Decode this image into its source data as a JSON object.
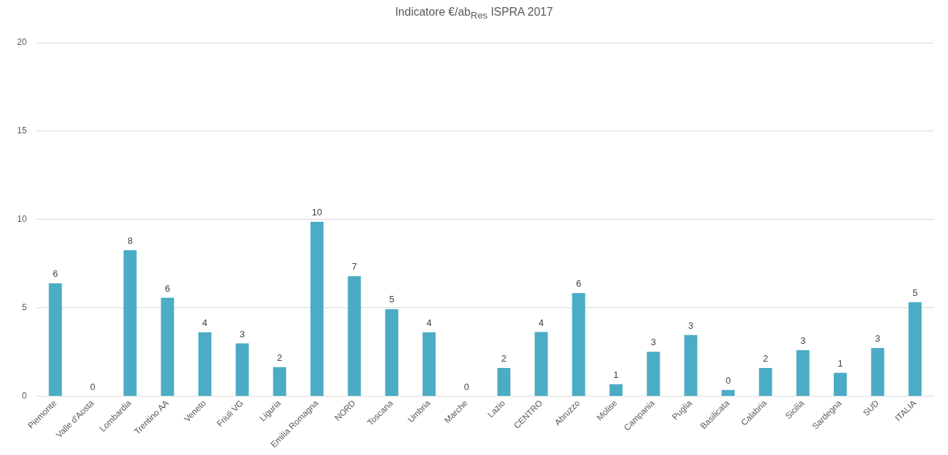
{
  "chart_data": {
    "type": "bar",
    "title": "Indicatore €/ab$_{Res}$ ISPRA 2017",
    "categories": [
      "Piemonte",
      "Valle d'Aosta",
      "Lombardia",
      "Trentino AA",
      "Veneto",
      "Friuli VG",
      "Liguria",
      "Emilia Romagna",
      "NORD",
      "Toscana",
      "Umbria",
      "Marche",
      "Lazio",
      "CENTRO",
      "Abruzzo",
      "Molise",
      "Campania",
      "Puglia",
      "Basilicata",
      "Calabria",
      "Sicilia",
      "Sardegna",
      "SUD",
      "ITALIA"
    ],
    "values": [
      6.39,
      0,
      8.27,
      5.57,
      3.61,
      2.99,
      1.65,
      9.87,
      6.79,
      4.93,
      3.61,
      0,
      1.6,
      3.63,
      5.83,
      0.68,
      2.52,
      3.46,
      0.36,
      1.6,
      2.61,
      1.32,
      2.73,
      5.32
    ],
    "value_labels": [
      "6",
      "0",
      "8",
      "6",
      "4",
      "3",
      "2",
      "10",
      "7",
      "5",
      "4",
      "0",
      "2",
      "4",
      "6",
      "1",
      "3",
      "3",
      "0",
      "2",
      "3",
      "1",
      "3",
      "5"
    ],
    "color": "#4bacc6",
    "ylim": [
      0,
      20
    ],
    "yticks": [
      0,
      5,
      10,
      15,
      20
    ],
    "grid": "y",
    "legend": false
  }
}
